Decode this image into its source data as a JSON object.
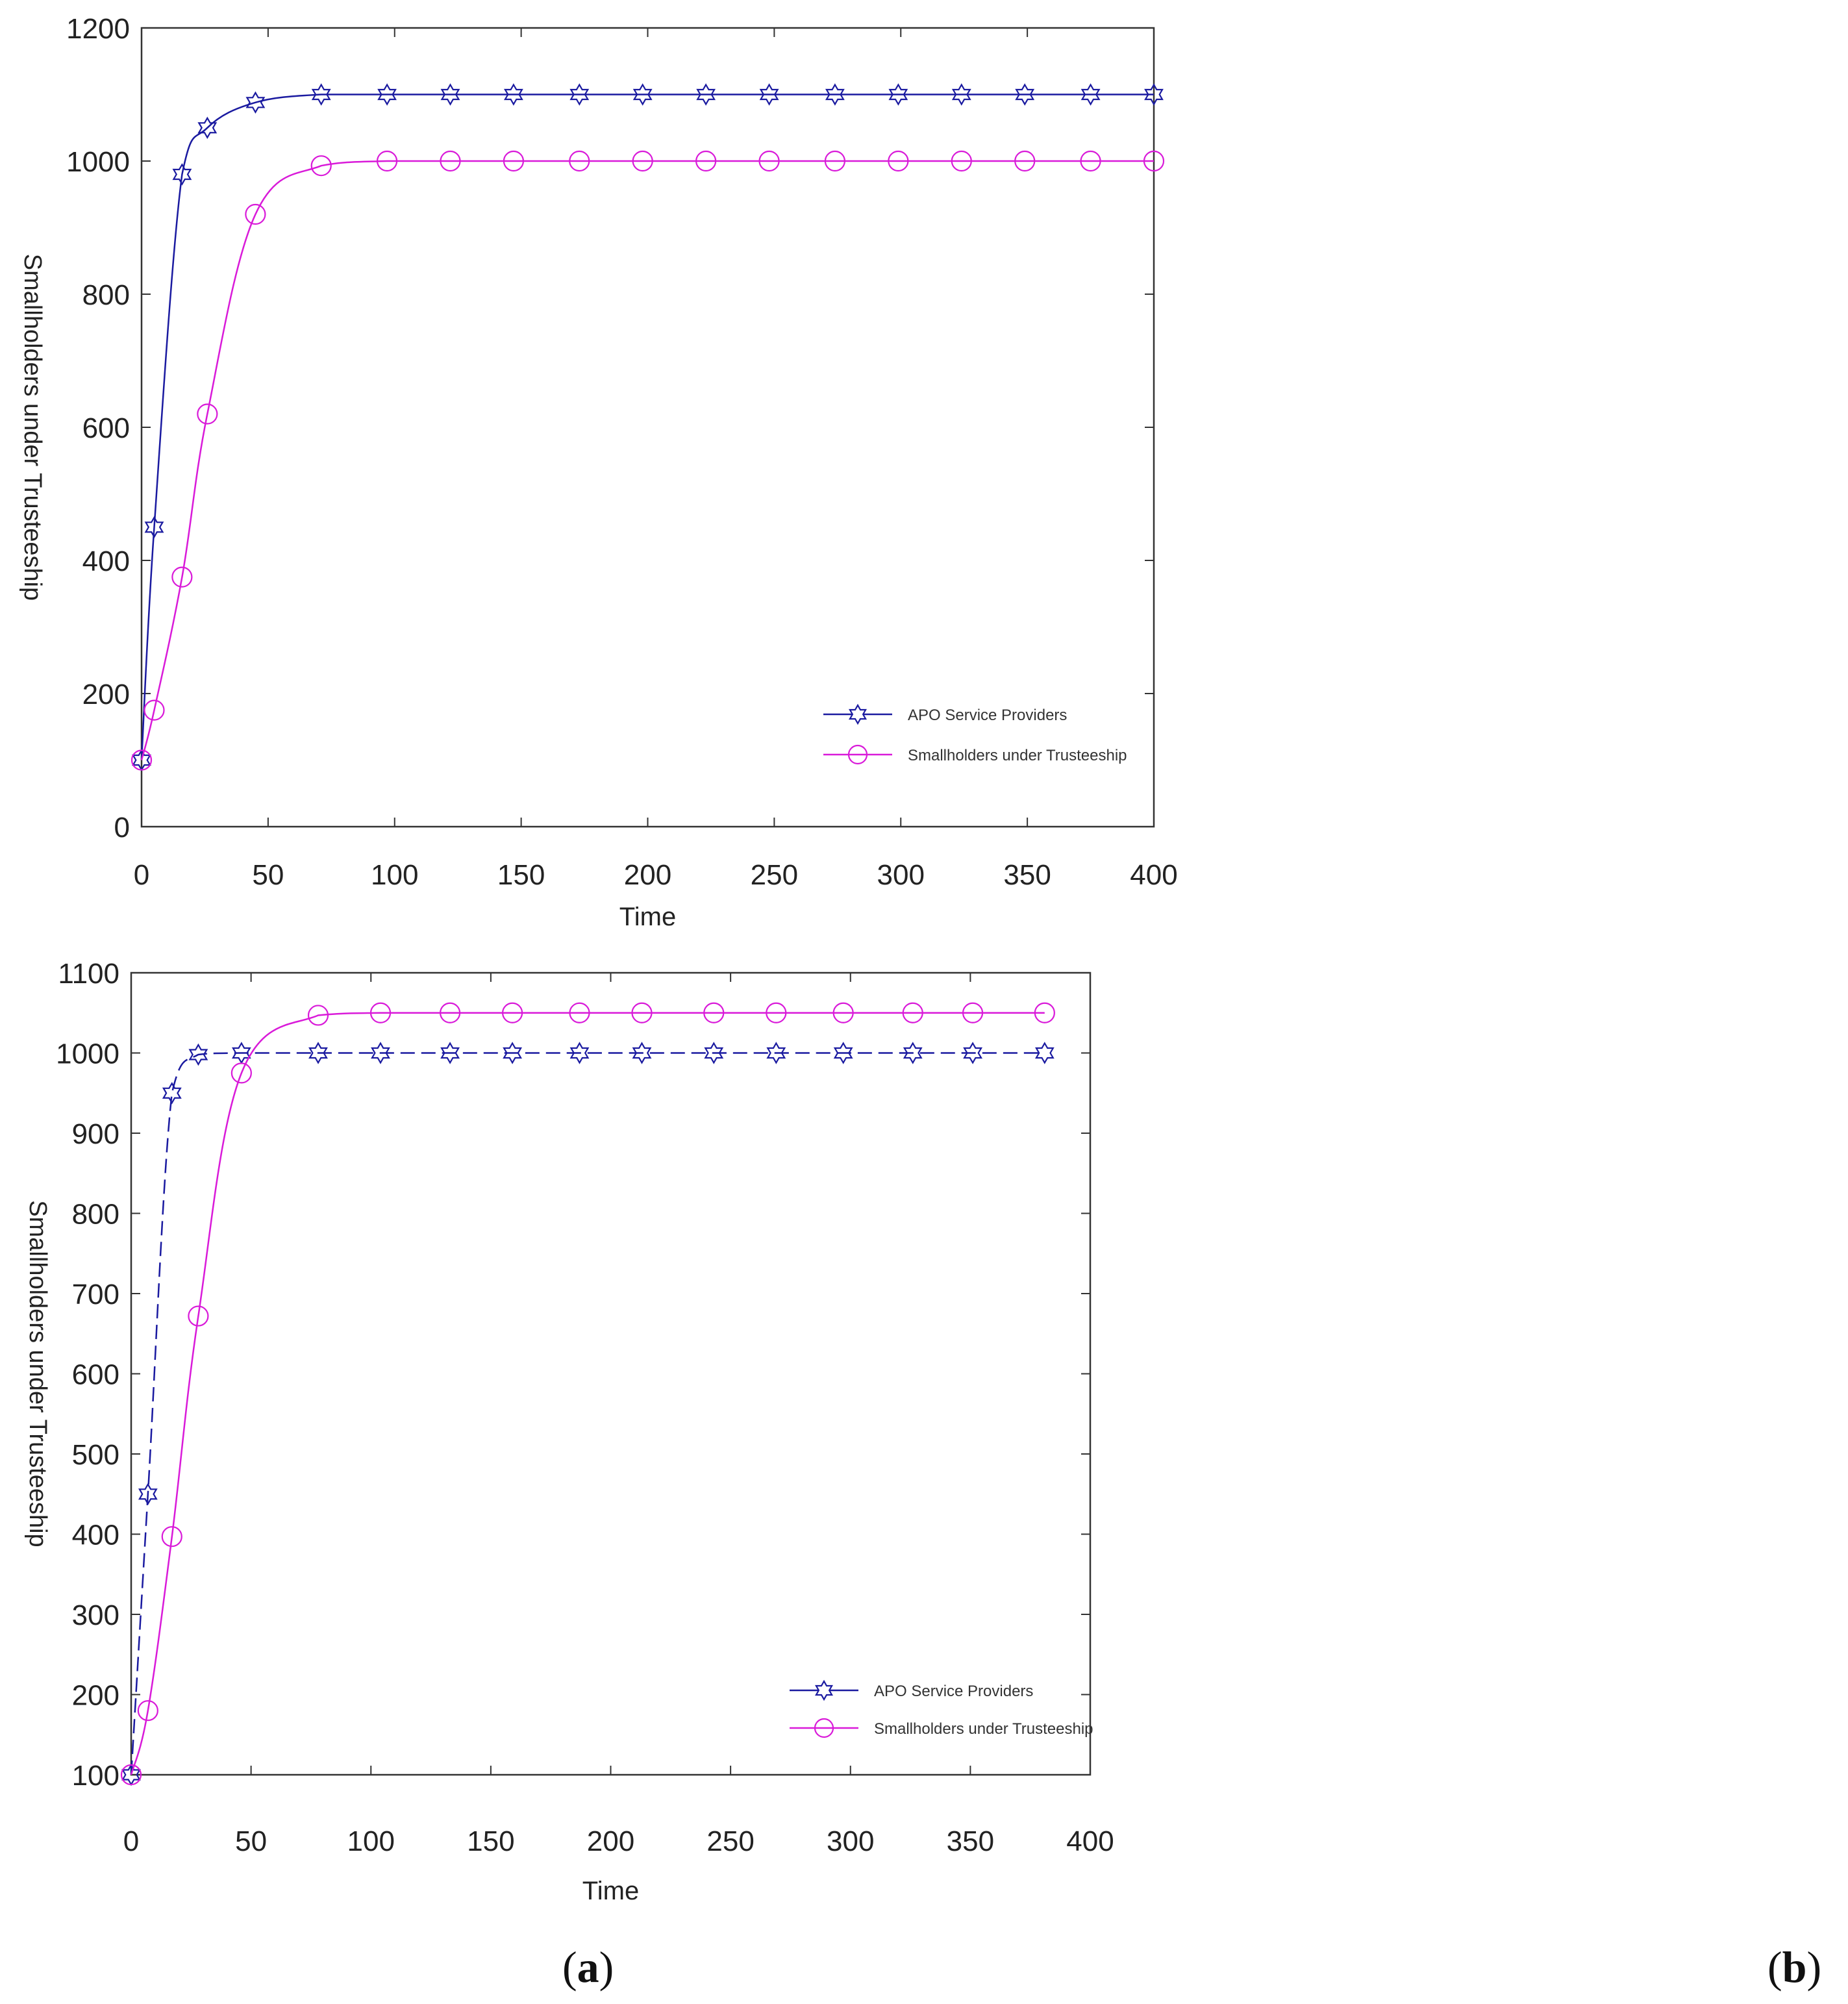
{
  "figure": {
    "panels": [
      {
        "id": "a",
        "label": "a"
      },
      {
        "id": "b",
        "label": "b"
      }
    ]
  },
  "chart_data": [
    {
      "type": "line",
      "panel": "top",
      "title": "",
      "xlabel": "Time",
      "ylabel": "Smallholders under Trusteeship",
      "xlim": [
        0,
        400
      ],
      "ylim": [
        0,
        1200
      ],
      "xticks": [
        0,
        50,
        100,
        150,
        200,
        250,
        300,
        350,
        400
      ],
      "yticks": [
        0,
        200,
        400,
        600,
        800,
        1000,
        1200
      ],
      "grid": false,
      "legend_position": "lower right",
      "series": [
        {
          "name": "APO Service Providers",
          "color": "#1a1aa0",
          "marker": "hexagram",
          "x": [
            0,
            5,
            16,
            26,
            45,
            71,
            97,
            122,
            147,
            173,
            198,
            223,
            248,
            274,
            299,
            324,
            349,
            375,
            400
          ],
          "y": [
            100,
            450,
            980,
            1050,
            1088,
            1100,
            1100,
            1100,
            1100,
            1100,
            1100,
            1100,
            1100,
            1100,
            1100,
            1100,
            1100,
            1100,
            1100
          ]
        },
        {
          "name": "Smallholders under Trusteeship",
          "color": "#d91ad9",
          "marker": "circle",
          "x": [
            0,
            5,
            16,
            26,
            45,
            71,
            97,
            122,
            147,
            173,
            198,
            223,
            248,
            274,
            299,
            324,
            349,
            375,
            400
          ],
          "y": [
            100,
            175,
            375,
            620,
            920,
            993,
            1000,
            1000,
            1000,
            1000,
            1000,
            1000,
            1000,
            1000,
            1000,
            1000,
            1000,
            1000,
            1000
          ]
        }
      ]
    },
    {
      "type": "line",
      "panel": "bottom",
      "title": "",
      "xlabel": "Time",
      "ylabel": "Smallholders under Trusteeship",
      "xlim": [
        0,
        400
      ],
      "ylim": [
        100,
        1100
      ],
      "xticks": [
        0,
        50,
        100,
        150,
        200,
        250,
        300,
        350,
        400
      ],
      "yticks": [
        100,
        200,
        300,
        400,
        500,
        600,
        700,
        800,
        900,
        1000,
        1100
      ],
      "grid": false,
      "legend_position": "lower right",
      "series": [
        {
          "name": "APO Service Providers",
          "color": "#1a1aa0",
          "marker": "hexagram",
          "x": [
            0,
            7,
            17,
            28,
            46,
            78,
            104,
            133,
            159,
            187,
            213,
            243,
            269,
            297,
            326,
            351,
            381
          ],
          "y": [
            100,
            450,
            950,
            998,
            1000,
            1000,
            1000,
            1000,
            1000,
            1000,
            1000,
            1000,
            1000,
            1000,
            1000,
            1000,
            1000
          ]
        },
        {
          "name": "Smallholders under Trusteeship",
          "color": "#d91ad9",
          "marker": "circle",
          "x": [
            0,
            7,
            17,
            28,
            46,
            78,
            104,
            133,
            159,
            187,
            213,
            243,
            269,
            297,
            326,
            351,
            381
          ],
          "y": [
            100,
            180,
            397,
            672,
            975,
            1047,
            1050,
            1050,
            1050,
            1050,
            1050,
            1050,
            1050,
            1050,
            1050,
            1050,
            1050
          ]
        }
      ]
    }
  ]
}
